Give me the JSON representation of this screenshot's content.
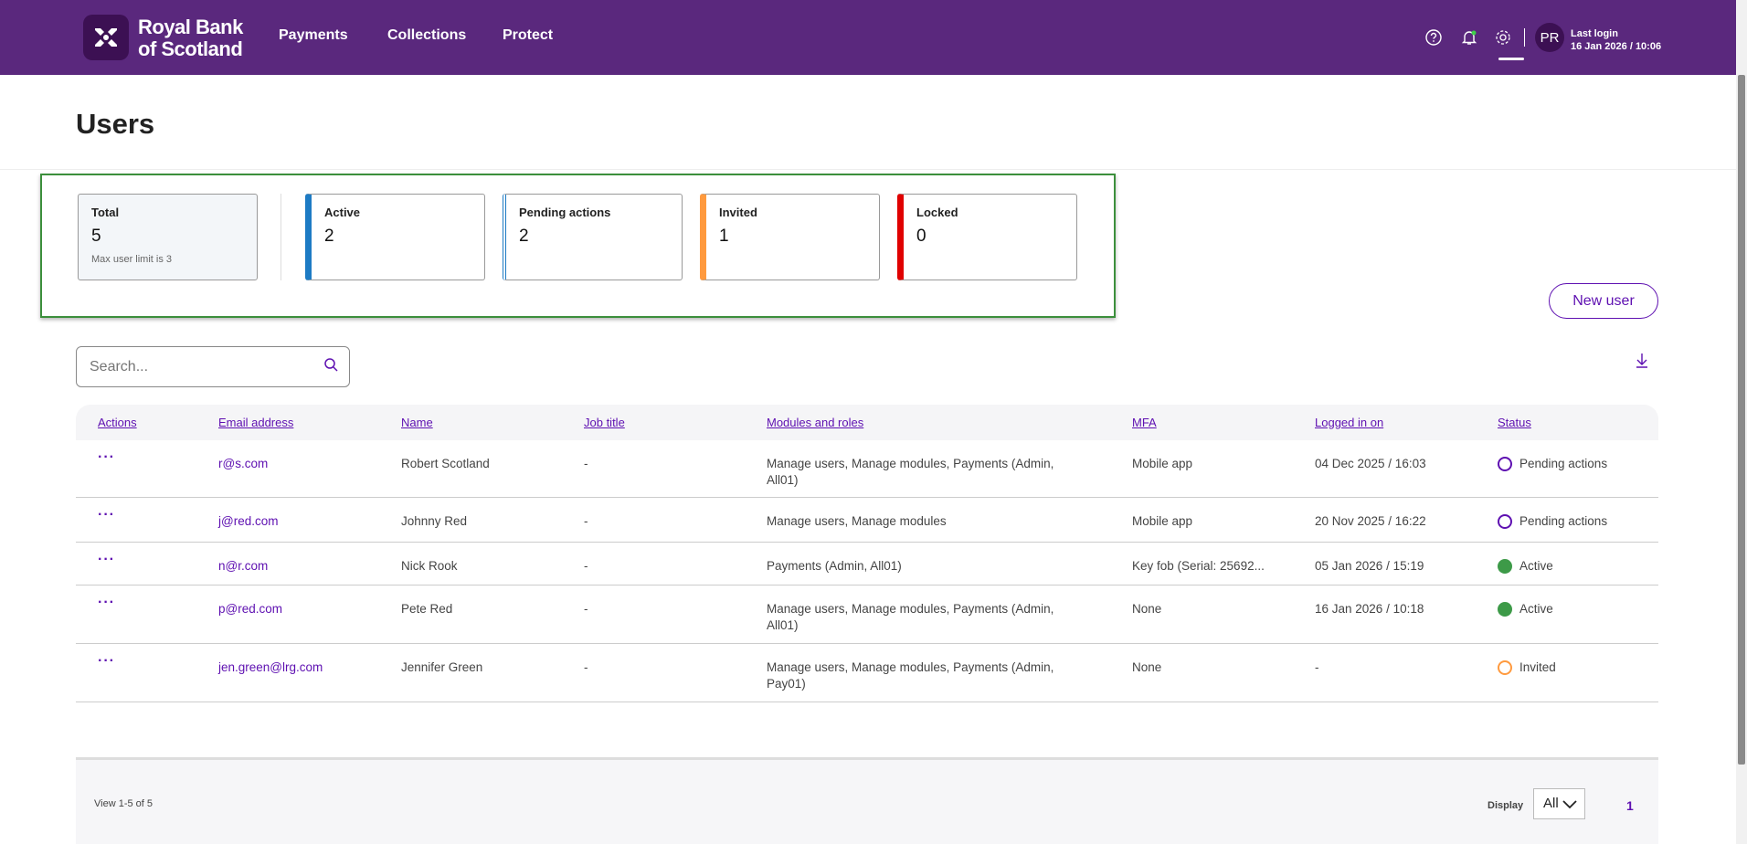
{
  "header": {
    "brand_line1": "Royal Bank",
    "brand_line2": "of Scotland",
    "nav": [
      "Payments",
      "Collections",
      "Protect"
    ],
    "avatar": "PR",
    "last_login_label": "Last login",
    "last_login_value": "16 Jan 2026 / 10:06"
  },
  "page": {
    "title": "Users"
  },
  "summary": {
    "total": {
      "label": "Total",
      "value": "5",
      "note": "Max user limit is 3"
    },
    "cards": [
      {
        "label": "Active",
        "value": "2",
        "color": "#1d7bc4"
      },
      {
        "label": "Pending actions",
        "value": "2",
        "color": "#1d7bc4"
      },
      {
        "label": "Invited",
        "value": "1",
        "color": "#ff9a3e"
      },
      {
        "label": "Locked",
        "value": "0",
        "color": "#e00000"
      }
    ]
  },
  "toolbar": {
    "new_user": "New user",
    "search_placeholder": "Search..."
  },
  "table": {
    "headers": [
      "Actions",
      "Email address",
      "Name",
      "Job title",
      "Modules and roles",
      "MFA",
      "Logged in on",
      "Status"
    ],
    "rows": [
      {
        "actions": "···",
        "email": "r@s.com",
        "name": "Robert Scotland",
        "job": "-",
        "modules": "Manage users, Manage modules, Payments (Admin, All01)",
        "mfa": "Mobile app",
        "logged": "04 Dec 2025 / 16:03",
        "status": "Pending actions"
      },
      {
        "actions": "···",
        "email": "j@red.com",
        "name": "Johnny Red",
        "job": "-",
        "modules": "Manage users, Manage modules",
        "mfa": "Mobile app",
        "logged": "20 Nov 2025 / 16:22",
        "status": "Pending actions"
      },
      {
        "actions": "···",
        "email": "n@r.com",
        "name": "Nick Rook",
        "job": "-",
        "modules": "Payments (Admin, All01)",
        "mfa": "Key fob (Serial: 25692...",
        "logged": "05 Jan 2026 / 15:19",
        "status": "Active"
      },
      {
        "actions": "···",
        "email": "p@red.com",
        "name": "Pete Red",
        "job": "-",
        "modules": "Manage users, Manage modules, Payments (Admin, All01)",
        "mfa": "None",
        "logged": "16 Jan 2026 / 10:18",
        "status": "Active"
      },
      {
        "actions": "···",
        "email": "jen.green@lrg.com",
        "name": "Jennifer Green",
        "job": "-",
        "modules": "Manage users, Manage modules, Payments (Admin, Pay01)",
        "mfa": "None",
        "logged": "-",
        "status": "Invited"
      }
    ]
  },
  "footer": {
    "view": "View 1-5 of 5",
    "display_label": "Display",
    "display_value": "All",
    "page": "1"
  }
}
